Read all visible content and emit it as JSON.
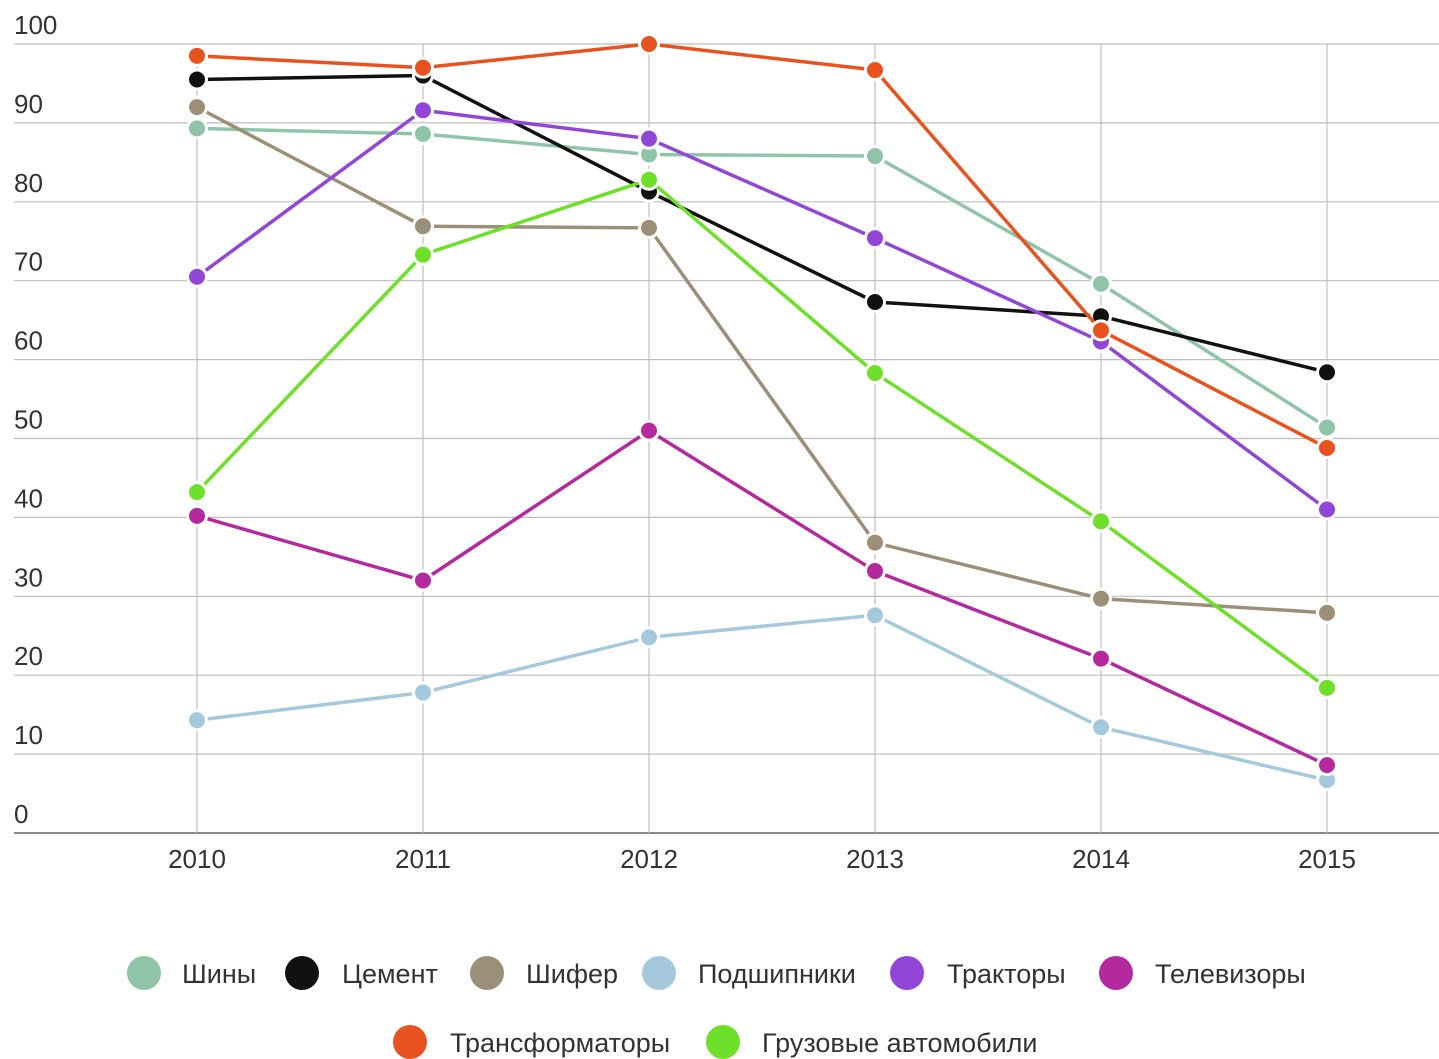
{
  "chart_data": {
    "type": "line",
    "title": "",
    "xlabel": "",
    "ylabel": "",
    "ylim": [
      0,
      100
    ],
    "yticks": [
      0,
      10,
      20,
      30,
      40,
      50,
      60,
      70,
      80,
      90,
      100
    ],
    "x": [
      "2010",
      "2011",
      "2012",
      "2013",
      "2014",
      "2015"
    ],
    "grid": true,
    "legend_position": "bottom",
    "series": [
      {
        "name": "Шины",
        "color": "#8fc4a8",
        "values": [
          89.3,
          88.6,
          86.0,
          85.8,
          69.6,
          51.4
        ]
      },
      {
        "name": "Цемент",
        "color": "#111111",
        "values": [
          95.5,
          96.0,
          81.3,
          67.3,
          65.5,
          58.4
        ]
      },
      {
        "name": "Шифер",
        "color": "#9b8f78",
        "values": [
          92.0,
          76.9,
          76.7,
          36.8,
          29.7,
          27.9
        ]
      },
      {
        "name": "Подшипники",
        "color": "#a5c9dc",
        "values": [
          14.3,
          17.8,
          24.8,
          27.6,
          13.4,
          6.7
        ]
      },
      {
        "name": "Тракторы",
        "color": "#9146d8",
        "values": [
          70.5,
          91.6,
          88.0,
          75.4,
          62.3,
          41.0
        ]
      },
      {
        "name": "Телевизоры",
        "color": "#b5299e",
        "values": [
          40.2,
          32.0,
          51.0,
          33.2,
          22.1,
          8.6
        ]
      },
      {
        "name": "Трансформаторы",
        "color": "#e8521e",
        "values": [
          98.5,
          97.0,
          100.0,
          96.7,
          63.7,
          48.8
        ]
      },
      {
        "name": "Грузовые автомобили",
        "color": "#6ee02a",
        "values": [
          43.2,
          73.3,
          82.8,
          58.3,
          39.5,
          18.4
        ]
      }
    ]
  }
}
